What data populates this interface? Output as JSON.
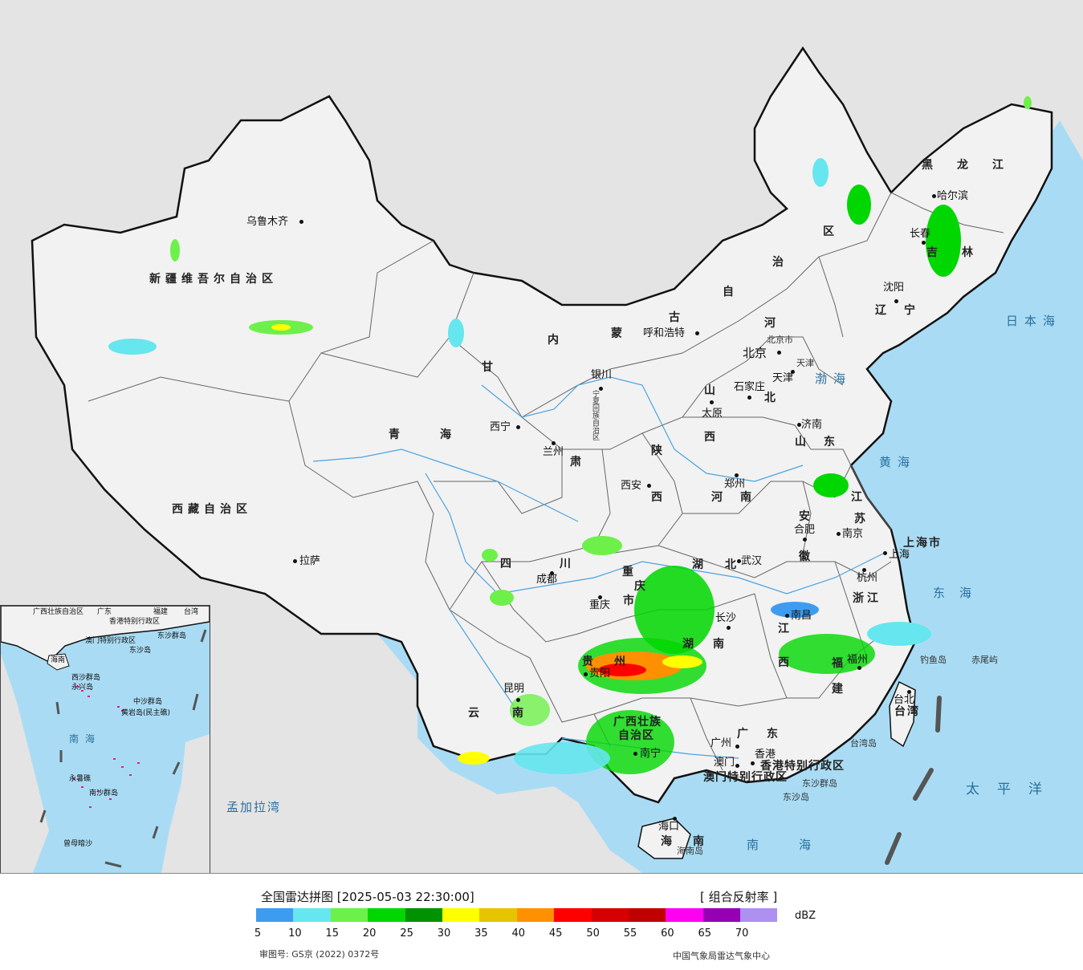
{
  "colors": {
    "sea": "#a9dcf4",
    "land": "#f2f2f2",
    "foreign_land": "#e4e4e4",
    "border": "#111111"
  },
  "map": {
    "cities": [
      {
        "name": "乌鲁木齐"
      },
      {
        "name": "拉萨"
      },
      {
        "name": "西宁"
      },
      {
        "name": "兰州"
      },
      {
        "name": "银川"
      },
      {
        "name": "呼和浩特"
      },
      {
        "name": "北京"
      },
      {
        "name": "天津"
      },
      {
        "name": "石家庄"
      },
      {
        "name": "太原"
      },
      {
        "name": "济南"
      },
      {
        "name": "郑州"
      },
      {
        "name": "西安"
      },
      {
        "name": "成都"
      },
      {
        "name": "重庆"
      },
      {
        "name": "武汉"
      },
      {
        "name": "合肥"
      },
      {
        "name": "南京"
      },
      {
        "name": "上海"
      },
      {
        "name": "杭州"
      },
      {
        "name": "南昌"
      },
      {
        "name": "长沙"
      },
      {
        "name": "贵阳"
      },
      {
        "name": "昆明"
      },
      {
        "name": "南宁"
      },
      {
        "name": "广州"
      },
      {
        "name": "香港"
      },
      {
        "name": "澳门"
      },
      {
        "name": "福州"
      },
      {
        "name": "台北"
      },
      {
        "name": "海口"
      },
      {
        "name": "沈阳"
      },
      {
        "name": "长春"
      },
      {
        "name": "哈尔滨"
      }
    ],
    "provinces": [
      {
        "name": "新疆维吾尔自治区"
      },
      {
        "name": "西藏自治区"
      },
      {
        "name": "青海"
      },
      {
        "name": "甘"
      },
      {
        "name": "肃"
      },
      {
        "name": "内"
      },
      {
        "name": "蒙"
      },
      {
        "name": "古"
      },
      {
        "name": "自"
      },
      {
        "name": "治"
      },
      {
        "name": "区"
      },
      {
        "name": "黑龙江"
      },
      {
        "name": "吉林"
      },
      {
        "name": "辽宁"
      },
      {
        "name": "河"
      },
      {
        "name": "北"
      },
      {
        "name": "山"
      },
      {
        "name": "西"
      },
      {
        "name": "山东"
      },
      {
        "name": "陕"
      },
      {
        "name": "西"
      },
      {
        "name": "河南"
      },
      {
        "name": "江"
      },
      {
        "name": "苏"
      },
      {
        "name": "安"
      },
      {
        "name": "徽"
      },
      {
        "name": "上海市"
      },
      {
        "name": "浙江"
      },
      {
        "name": "四"
      },
      {
        "name": "川"
      },
      {
        "name": "重"
      },
      {
        "name": "庆"
      },
      {
        "name": "市"
      },
      {
        "name": "湖"
      },
      {
        "name": "北"
      },
      {
        "name": "湖"
      },
      {
        "name": "南"
      },
      {
        "name": "江"
      },
      {
        "name": "西"
      },
      {
        "name": "福"
      },
      {
        "name": "建"
      },
      {
        "name": "贵"
      },
      {
        "name": "州"
      },
      {
        "name": "云"
      },
      {
        "name": "南"
      },
      {
        "name": "广西壮族"
      },
      {
        "name": "自治区"
      },
      {
        "name": "广"
      },
      {
        "name": "东"
      },
      {
        "name": "香港特别行政区"
      },
      {
        "name": "澳门特别行政区"
      },
      {
        "name": "台湾"
      },
      {
        "name": "海"
      },
      {
        "name": "南"
      },
      {
        "name": "北京市"
      },
      {
        "name": "天津"
      },
      {
        "name": "宁夏回族自治区"
      }
    ],
    "seas": [
      {
        "name": "日本海"
      },
      {
        "name": "渤海"
      },
      {
        "name": "黄海"
      },
      {
        "name": "东海"
      },
      {
        "name": "太平洋"
      },
      {
        "name": "南海"
      },
      {
        "name": "孟加拉湾"
      }
    ],
    "islands": [
      {
        "name": "钓鱼岛"
      },
      {
        "name": "赤尾屿"
      },
      {
        "name": "台湾岛"
      },
      {
        "name": "东沙群岛"
      },
      {
        "name": "东沙岛"
      },
      {
        "name": "海南岛"
      }
    ]
  },
  "inset": {
    "labels": [
      {
        "name": "广西壮族自治区"
      },
      {
        "name": "广东"
      },
      {
        "name": "福建"
      },
      {
        "name": "台湾"
      },
      {
        "name": "香港特别行政区"
      },
      {
        "name": "澳门特别行政区"
      },
      {
        "name": "东沙群岛"
      },
      {
        "name": "海南"
      },
      {
        "name": "西沙群岛"
      },
      {
        "name": "中沙群岛"
      },
      {
        "name": "黄岩岛(民主礁)"
      },
      {
        "name": "南海"
      },
      {
        "name": "永暑礁"
      },
      {
        "name": "南沙群岛"
      },
      {
        "name": "曾母暗沙"
      },
      {
        "name": "东沙岛"
      },
      {
        "name": "永兴岛"
      }
    ]
  },
  "legend": {
    "title": "全国雷达拼图 [2025-05-03 22:30:00]",
    "product": "[ 组合反射率 ]",
    "unit": "dBZ",
    "approval": "审图号: GS京 (2022) 0372号",
    "producer": "中国气象局雷达气象中心",
    "colors": [
      "#3e9cf0",
      "#66e6ee",
      "#6ef04a",
      "#00d700",
      "#009200",
      "#ffff00",
      "#e6c400",
      "#ff9100",
      "#ff0000",
      "#d60000",
      "#c00000",
      "#ff00f0",
      "#9600b4",
      "#ad90f0"
    ],
    "ticks": [
      "5",
      "10",
      "15",
      "20",
      "25",
      "30",
      "35",
      "40",
      "45",
      "50",
      "55",
      "60",
      "65",
      "70"
    ]
  }
}
